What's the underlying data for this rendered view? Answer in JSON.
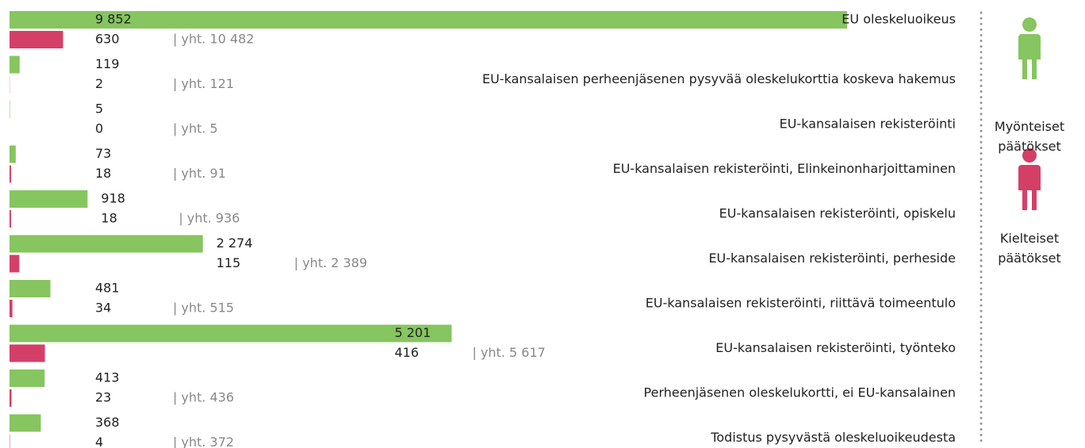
{
  "chart_data": {
    "type": "bar",
    "orientation": "horizontal",
    "categories": [
      "EU oleskeluoikeus",
      "EU-kansalaisen perheenjäsenen pysyvää oleskelukorttia koskeva hakemus",
      "EU-kansalaisen rekisteröinti",
      "EU-kansalaisen rekisteröinti, Elinkeinonharjoittaminen",
      "EU-kansalaisen rekisteröinti, opiskelu",
      "EU-kansalaisen rekisteröinti, perheside",
      "EU-kansalaisen rekisteröinti, riittävä toimeentulo",
      "EU-kansalaisen rekisteröinti, työnteko",
      "Perheenjäsenen oleskelukortti, ei EU-kansalainen",
      "Todistus pysyvästä oleskeluoikeudesta"
    ],
    "series": [
      {
        "name": "Myönteiset päätökset",
        "color": "#86c55f",
        "values": [
          9852,
          119,
          5,
          73,
          918,
          2274,
          481,
          5201,
          413,
          368
        ],
        "value_labels": [
          "9 852",
          "119",
          "5",
          "73",
          "918",
          "2 274",
          "481",
          "5 201",
          "413",
          "368"
        ]
      },
      {
        "name": "Kielteiset päätökset",
        "color": "#d43f67",
        "values": [
          630,
          2,
          0,
          18,
          18,
          115,
          34,
          416,
          23,
          4
        ]
      }
    ],
    "total_labels": [
      "| yht. 10 482",
      "| yht. 121",
      "| yht. 5",
      "| yht. 91",
      "| yht. 936",
      "| yht. 2 389",
      "| yht. 515",
      "| yht. 5 617",
      "| yht. 436",
      "| yht. 372"
    ]
  }
}
